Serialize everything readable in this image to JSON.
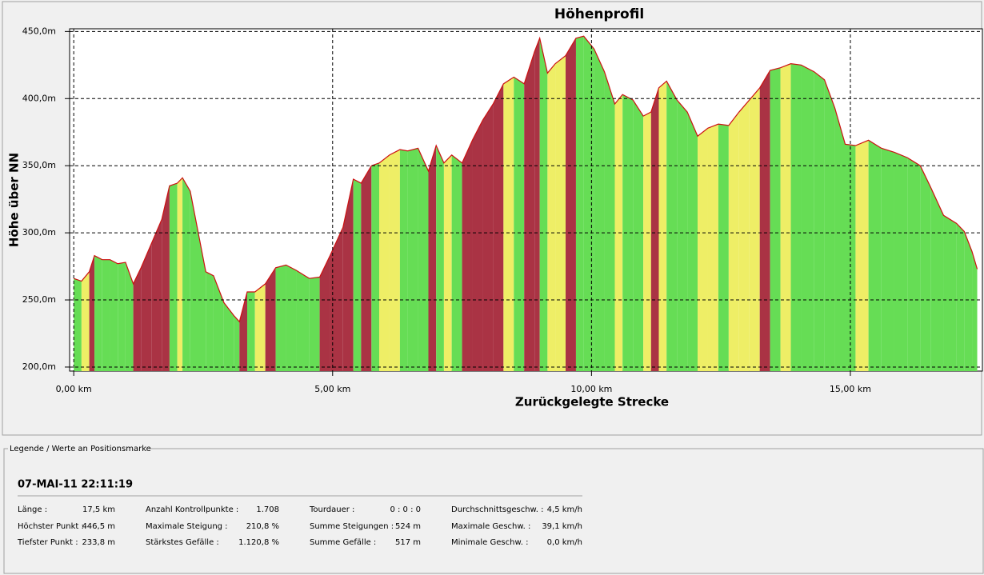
{
  "chart_data": {
    "type": "area",
    "title": "Höhenprofil",
    "x_label": "Zurückgelegte Strecke",
    "y_label": "Höhe über NN",
    "x": [
      0,
      0.15,
      0.3,
      0.4,
      0.55,
      0.7,
      0.85,
      1.0,
      1.15,
      1.3,
      1.5,
      1.7,
      1.85,
      2.0,
      2.1,
      2.25,
      2.4,
      2.55,
      2.7,
      2.9,
      3.1,
      3.2,
      3.35,
      3.5,
      3.7,
      3.9,
      4.1,
      4.3,
      4.55,
      4.75,
      4.95,
      5.2,
      5.4,
      5.55,
      5.75,
      5.9,
      6.1,
      6.3,
      6.45,
      6.65,
      6.85,
      7.0,
      7.15,
      7.3,
      7.5,
      7.7,
      7.9,
      8.1,
      8.3,
      8.5,
      8.7,
      8.9,
      9.0,
      9.15,
      9.3,
      9.5,
      9.7,
      9.85,
      10.05,
      10.25,
      10.45,
      10.6,
      10.8,
      11.0,
      11.15,
      11.3,
      11.45,
      11.65,
      11.85,
      12.05,
      12.25,
      12.45,
      12.65,
      12.85,
      13.05,
      13.25,
      13.45,
      13.65,
      13.85,
      14.05,
      14.3,
      14.5,
      14.7,
      14.9,
      15.1,
      15.35,
      15.6,
      15.85,
      16.1,
      16.35,
      16.55,
      16.8,
      17.05,
      17.2,
      17.35,
      17.45
    ],
    "series": [
      {
        "color": "#cc1111",
        "values": [
          266,
          264,
          271,
          283,
          280,
          280,
          277,
          278,
          262,
          274,
          292,
          310,
          335,
          337,
          341,
          331,
          301,
          271,
          268,
          248,
          238,
          233.8,
          256,
          256,
          262,
          274,
          276,
          272,
          266,
          267,
          283,
          304,
          340,
          337,
          350,
          352,
          358,
          362,
          361,
          363,
          346,
          365,
          352,
          358,
          352,
          369,
          384,
          396,
          411,
          416,
          411,
          435,
          445,
          419,
          426,
          432,
          445,
          446.5,
          437,
          420,
          396,
          403,
          399,
          387,
          390,
          408,
          413,
          399,
          390,
          372,
          378,
          381,
          380,
          390,
          399,
          408,
          421,
          423,
          426,
          425,
          420,
          414,
          393,
          366,
          365,
          369,
          363,
          360,
          356,
          350,
          334,
          313,
          307,
          301,
          286,
          273
        ]
      }
    ],
    "fill_colors": {
      "flat": "#66dd55",
      "rise": "#eeee66",
      "steep": "#aa3344"
    },
    "xlim": [
      -0.08,
      17.55
    ],
    "ylim": [
      197,
      452
    ],
    "xticks": [
      {
        "value": 0,
        "label": "0,00 km"
      },
      {
        "value": 5,
        "label": "5,00 km"
      },
      {
        "value": 10,
        "label": "10,00 km"
      },
      {
        "value": 15,
        "label": "15,00 km"
      }
    ],
    "yticks": [
      {
        "value": 200,
        "label": "200,0m"
      },
      {
        "value": 250,
        "label": "250,0m"
      },
      {
        "value": 300,
        "label": "300,0m"
      },
      {
        "value": 350,
        "label": "350,0m"
      },
      {
        "value": 400,
        "label": "400,0m"
      },
      {
        "value": 450,
        "label": "450,0m"
      }
    ],
    "grid": true
  },
  "legend_panel": {
    "title": "Legende / Werte an Positionsmarke",
    "timestamp": "07-MAI-11 22:11:19",
    "rows": [
      [
        [
          "Länge :",
          "17,5 km"
        ],
        [
          "Anzahl Kontrollpunkte :",
          "1.708"
        ],
        [
          "Tourdauer :",
          "0 : 0 : 0"
        ],
        [
          "Durchschnittsgeschw. :",
          "4,5 km/h"
        ]
      ],
      [
        [
          "Höchster Punkt :",
          "446,5 m"
        ],
        [
          "Maximale Steigung :",
          "210,8 %"
        ],
        [
          "Summe Steigungen :",
          "524 m"
        ],
        [
          "Maximale Geschw. :",
          "39,1 km/h"
        ]
      ],
      [
        [
          "Tiefster Punkt :",
          "233,8 m"
        ],
        [
          "Stärkstes Gefälle :",
          "1.120,8 %"
        ],
        [
          "Summe Gefälle :",
          "517 m"
        ],
        [
          "Minimale Geschw. :",
          "0,0 km/h"
        ]
      ]
    ]
  }
}
